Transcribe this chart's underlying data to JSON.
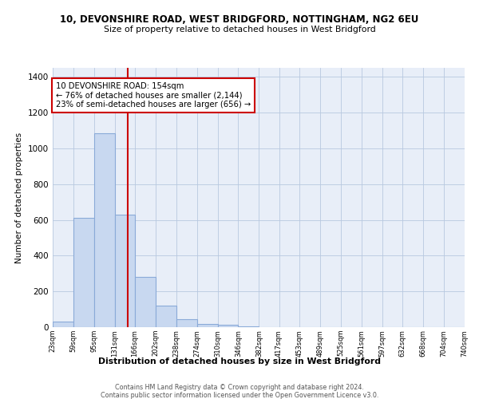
{
  "title1": "10, DEVONSHIRE ROAD, WEST BRIDGFORD, NOTTINGHAM, NG2 6EU",
  "title2": "Size of property relative to detached houses in West Bridgford",
  "xlabel": "Distribution of detached houses by size in West Bridgford",
  "ylabel": "Number of detached properties",
  "bin_labels": [
    "23sqm",
    "59sqm",
    "95sqm",
    "131sqm",
    "166sqm",
    "202sqm",
    "238sqm",
    "274sqm",
    "310sqm",
    "346sqm",
    "382sqm",
    "417sqm",
    "453sqm",
    "489sqm",
    "525sqm",
    "561sqm",
    "597sqm",
    "632sqm",
    "668sqm",
    "704sqm",
    "740sqm"
  ],
  "bar_heights": [
    30,
    610,
    1085,
    630,
    280,
    120,
    45,
    20,
    15,
    5,
    0,
    0,
    0,
    0,
    0,
    0,
    0,
    0,
    0,
    0
  ],
  "bar_color": "#c8d8f0",
  "bar_edge_color": "#8aaad8",
  "vline_x": 154,
  "vline_color": "#cc0000",
  "annotation_text": "10 DEVONSHIRE ROAD: 154sqm\n← 76% of detached houses are smaller (2,144)\n23% of semi-detached houses are larger (656) →",
  "annotation_bbox_color": "#ffffff",
  "annotation_bbox_edge": "#cc0000",
  "ylim": [
    0,
    1450
  ],
  "yticks": [
    0,
    200,
    400,
    600,
    800,
    1000,
    1200,
    1400
  ],
  "background_color": "#e8eef8",
  "footer1": "Contains HM Land Registry data © Crown copyright and database right 2024.",
  "footer2": "Contains public sector information licensed under the Open Government Licence v3.0."
}
